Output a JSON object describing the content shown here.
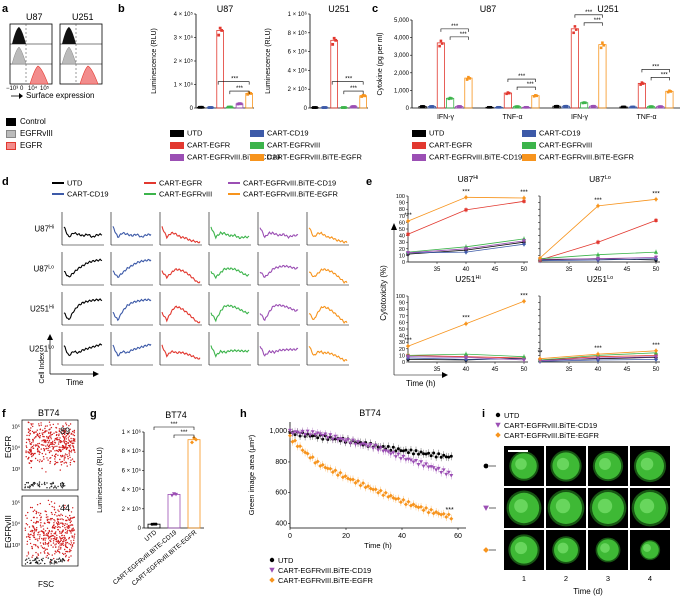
{
  "panel_labels": {
    "a": "a",
    "b": "b",
    "c": "c",
    "d": "d",
    "e": "e",
    "f": "f",
    "g": "g",
    "h": "h",
    "i": "i"
  },
  "colors": {
    "UTD": "#000000",
    "CART-CD19": "#3d5aa8",
    "CART-EGFR": "#e2382f",
    "CART-EGFRvIII": "#3cb44b",
    "BiTE-CD19": "#9b4fb4",
    "BiTE-EGFR": "#f7941d",
    "green_cells": "#43c43a"
  },
  "a": {
    "titles": [
      "U87",
      "U251"
    ],
    "xlabel": "Surface expression",
    "xticks": [
      "−10³",
      "0",
      "10³",
      "10⁴",
      "10⁵"
    ],
    "legend": [
      "Control",
      "EGFRvIII",
      "EGFR"
    ]
  },
  "b": {
    "charts": [
      {
        "title": "U87",
        "ylabel": "Luminescence (RLU)",
        "yticks": [
          "0",
          "1 × 10⁵",
          "2 × 10⁵",
          "3 × 10⁵",
          "4 × 10⁵"
        ],
        "ymax": 400000,
        "values": [
          3000,
          2000,
          330000,
          4000,
          18000,
          62000
        ],
        "sig": [
          "***",
          "***"
        ]
      },
      {
        "title": "U251",
        "ylabel": "Luminescence (RLU)",
        "yticks": [
          "0",
          "2 × 10⁵",
          "4 × 10⁵",
          "6 × 10⁵",
          "8 × 10⁵",
          "1 × 10⁶"
        ],
        "ymax": 1000000,
        "values": [
          5000,
          5000,
          720000,
          5000,
          15000,
          130000
        ],
        "sig": [
          "***",
          "***"
        ]
      }
    ],
    "legend": [
      "UTD",
      "CART-CD19",
      "CART-EGFR",
      "CART-EGFRvIII",
      "CART-EGFRvIII.BiTE-CD19",
      "CART-EGFRvIII.BiTE-EGFR"
    ]
  },
  "c": {
    "titles": [
      "U87",
      "U251"
    ],
    "ylabel": "Cytokine (pg per ml)",
    "yticks": [
      "0",
      "1,000",
      "2,000",
      "3,000",
      "4,000",
      "5,000"
    ],
    "ymax": 5000,
    "groups": [
      "IFN-γ",
      "TNF-α",
      "IFN-γ",
      "TNF-α"
    ],
    "values": [
      [
        90,
        90,
        3700,
        550,
        90,
        1700
      ],
      [
        40,
        40,
        850,
        80,
        40,
        700
      ],
      [
        100,
        100,
        4500,
        300,
        100,
        3600
      ],
      [
        60,
        60,
        1400,
        80,
        80,
        950
      ]
    ],
    "sig": [
      "***",
      "***",
      "***",
      "***",
      "***",
      "***",
      "***",
      "***"
    ]
  },
  "d": {
    "legend": [
      "UTD",
      "CART-EGFR",
      "CART-EGFRvIII.BiTE-CD19",
      "CART-CD19",
      "CART-EGFRvIII",
      "CART-EGFRvIII.BiTE-EGFR"
    ],
    "rows": [
      "U87",
      "U87",
      "U251",
      "U251"
    ],
    "row_sup": [
      "Hi",
      "Lo",
      "Hi",
      "Lo"
    ],
    "ylabel": "Cell Index",
    "xlabel": "Time"
  },
  "e": {
    "titles": [
      "U87",
      "U87",
      "U251",
      "U251"
    ],
    "title_sup": [
      "Hi",
      "Lo",
      "Hi",
      "Lo"
    ],
    "ylabel": "Cytotoxicity (%)",
    "xlabel": "Time (h)",
    "xticks": [
      "35",
      "40",
      "45",
      "50"
    ],
    "yticks": [
      "0",
      "10",
      "20",
      "30",
      "40",
      "50",
      "60",
      "70",
      "80",
      "90",
      "100"
    ],
    "chart_data": [
      {
        "title": "U87Hi",
        "x": [
          30,
          40,
          50
        ],
        "series": [
          {
            "name": "UTD",
            "values": [
              12,
              18,
              30
            ]
          },
          {
            "name": "CART-CD19",
            "values": [
              14,
              15,
              27
            ]
          },
          {
            "name": "CART-EGFR",
            "values": [
              42,
              79,
              92
            ]
          },
          {
            "name": "CART-EGFRvIII",
            "values": [
              15,
              23,
              35
            ]
          },
          {
            "name": "CART-EGFRvIII.BiTE-CD19",
            "values": [
              14,
              20,
              32
            ]
          },
          {
            "name": "CART-EGFRvIII.BiTE-EGFR",
            "values": [
              62,
              98,
              97
            ]
          }
        ],
        "sig": [
          "***",
          "***",
          "***"
        ]
      },
      {
        "title": "U87Lo",
        "x": [
          30,
          40,
          50
        ],
        "series": [
          {
            "name": "UTD",
            "values": [
              3,
              5,
              3
            ]
          },
          {
            "name": "CART-CD19",
            "values": [
              2,
              3,
              5
            ]
          },
          {
            "name": "CART-EGFR",
            "values": [
              3,
              30,
              63
            ]
          },
          {
            "name": "CART-EGFRvIII",
            "values": [
              5,
              11,
              15
            ]
          },
          {
            "name": "CART-EGFRvIII.BiTE-CD19",
            "values": [
              4,
              5,
              7
            ]
          },
          {
            "name": "CART-EGFRvIII.BiTE-EGFR",
            "values": [
              6,
              85,
              95
            ]
          }
        ],
        "sig": [
          "***",
          "***"
        ]
      },
      {
        "title": "U251Hi",
        "x": [
          30,
          40,
          50
        ],
        "series": [
          {
            "name": "UTD",
            "values": [
              4,
              3,
              6
            ]
          },
          {
            "name": "CART-CD19",
            "values": [
              6,
              4,
              5
            ]
          },
          {
            "name": "CART-EGFR",
            "values": [
              10,
              8,
              6
            ]
          },
          {
            "name": "CART-EGFRvIII",
            "values": [
              10,
              12,
              8
            ]
          },
          {
            "name": "CART-EGFRvIII.BiTE-CD19",
            "values": [
              8,
              7,
              3
            ]
          },
          {
            "name": "CART-EGFRvIII.BiTE-EGFR",
            "values": [
              24,
              58,
              92
            ]
          }
        ],
        "sig": [
          "***",
          "***",
          "***"
        ]
      },
      {
        "title": "U251Lo",
        "x": [
          30,
          40,
          50
        ],
        "series": [
          {
            "name": "UTD",
            "values": [
              3,
              5,
              7
            ]
          },
          {
            "name": "CART-CD19",
            "values": [
              1,
              3,
              4
            ]
          },
          {
            "name": "CART-EGFR",
            "values": [
              3,
              8,
              10
            ]
          },
          {
            "name": "CART-EGFRvIII",
            "values": [
              3,
              10,
              14
            ]
          },
          {
            "name": "CART-EGFRvIII.BiTE-CD19",
            "values": [
              2,
              6,
              8
            ]
          },
          {
            "name": "CART-EGFRvIII.BiTE-EGFR",
            "values": [
              5,
              12,
              17
            ]
          }
        ],
        "sig": [
          "**",
          "***",
          "***"
        ]
      }
    ]
  },
  "f": {
    "title": "BT74",
    "top": {
      "ylabel": "EGFR",
      "value": "89"
    },
    "bottom": {
      "ylabel": "EGFRvIII",
      "value": "44"
    },
    "xlabel": "FSC",
    "yticks": [
      "0",
      "10³",
      "10⁴",
      "10⁵"
    ]
  },
  "g": {
    "chart_data": {
      "type": "bar",
      "title": "BT74",
      "ylabel": "Luminescence (RLU)",
      "categories": [
        "UTD",
        "CART-EGFRvIII.BiTE-CD19",
        "CART-EGFRvIII.BiTE-EGFR"
      ],
      "values": [
        40000,
        350000,
        920000
      ],
      "ylim": [
        0,
        1000000
      ],
      "yticks": [
        "0",
        "2 × 10⁵",
        "4 × 10⁵",
        "6 × 10⁵",
        "8 × 10⁵",
        "1 × 10⁶"
      ],
      "sig": [
        "***",
        "***"
      ]
    }
  },
  "h": {
    "chart_data": {
      "type": "line",
      "title": "BT74",
      "ylabel": "Green image area (μm²)",
      "xlabel": "Time (h)",
      "xticks": [
        "0",
        "20",
        "40",
        "60"
      ],
      "yticks": [
        "400",
        "600",
        "800",
        "1,000"
      ],
      "xlim": [
        0,
        60
      ],
      "ylim": [
        370,
        1060
      ],
      "series": [
        {
          "name": "UTD",
          "x": [
            0,
            10,
            20,
            30,
            40,
            50,
            58
          ],
          "values": [
            990,
            965,
            940,
            905,
            875,
            850,
            830
          ]
        },
        {
          "name": "CART-EGFRvIII.BiTE-CD19",
          "x": [
            0,
            10,
            20,
            30,
            40,
            50,
            58
          ],
          "values": [
            995,
            985,
            940,
            900,
            830,
            770,
            715
          ]
        },
        {
          "name": "CART-EGFRvIII.BiTE-EGFR",
          "x": [
            0,
            5,
            10,
            20,
            30,
            40,
            50,
            58
          ],
          "values": [
            960,
            870,
            790,
            700,
            620,
            545,
            480,
            440
          ]
        }
      ],
      "sig": "***"
    }
  },
  "i": {
    "legend": [
      "UTD",
      "CART-EGFRvIII.BiTE-CD19",
      "CART-EGFRvIII.BiTE-EGFR"
    ],
    "xticks": [
      "1",
      "2",
      "3",
      "4"
    ],
    "xlabel": "Time (d)"
  }
}
